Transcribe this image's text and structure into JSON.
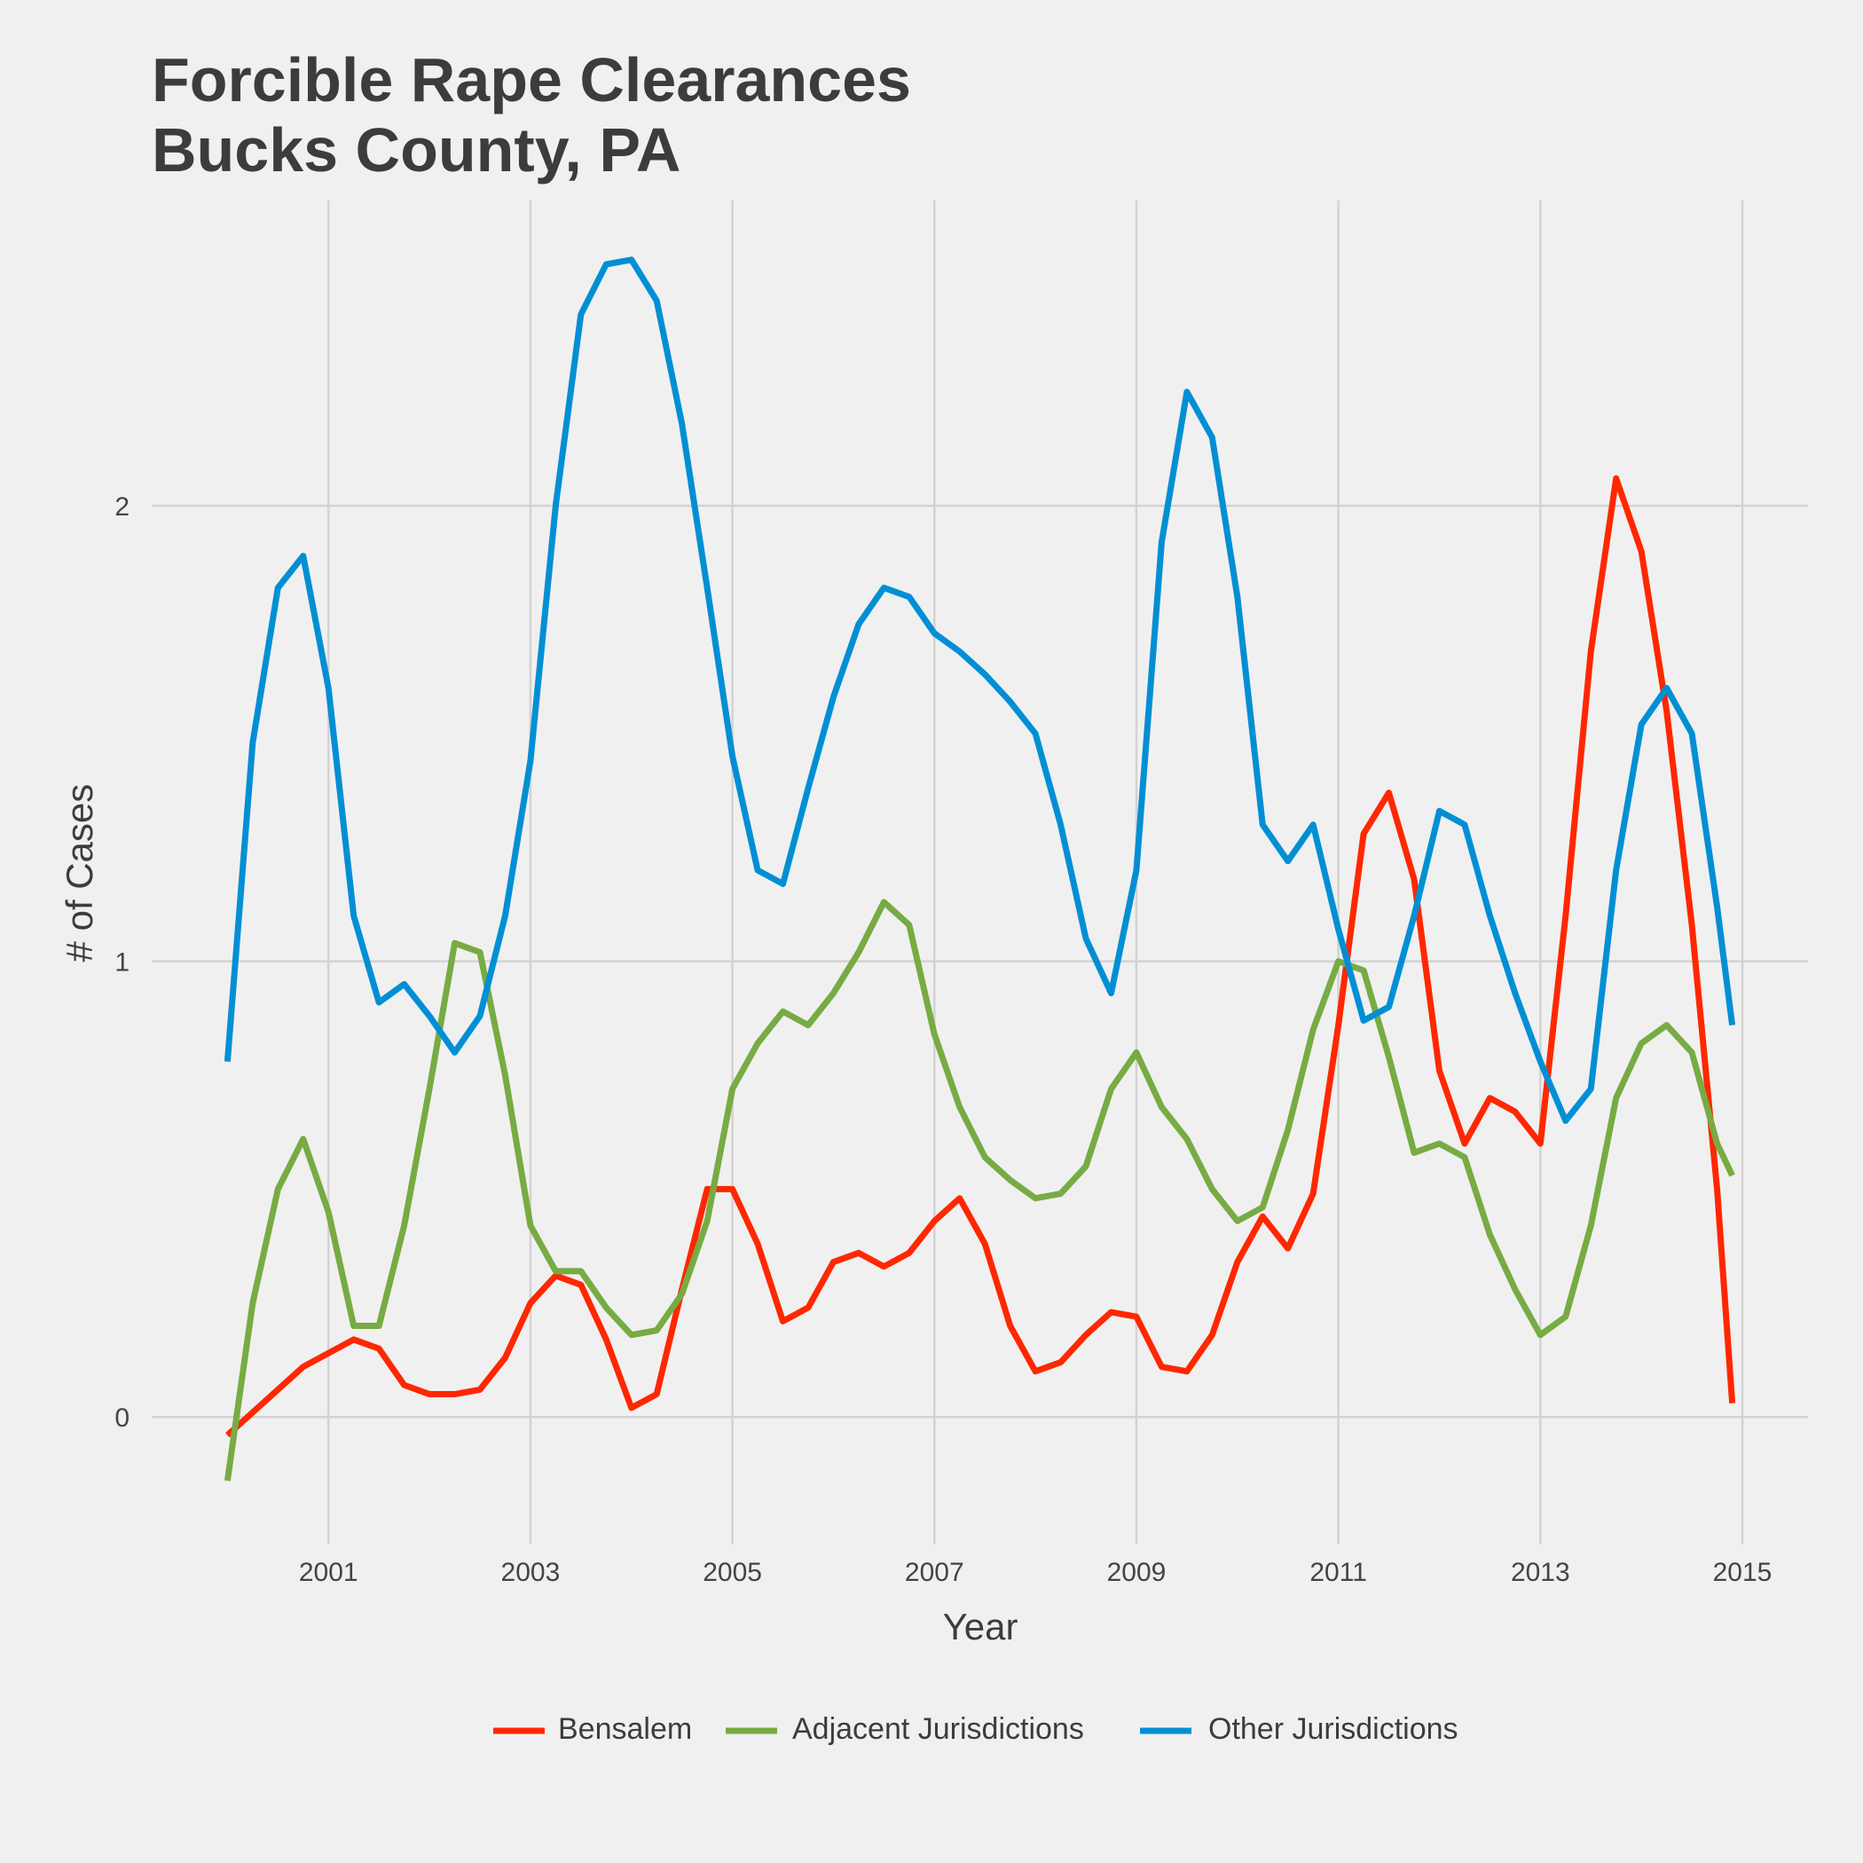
{
  "chart_data": {
    "type": "line",
    "title": [
      "Forcible Rape Clearances",
      "Bucks County, PA"
    ],
    "x_label": "Year",
    "y_label": "# of Cases",
    "x": [
      2000,
      2000.25,
      2000.5,
      2000.75,
      2001,
      2001.25,
      2001.5,
      2001.75,
      2002,
      2002.25,
      2002.5,
      2002.75,
      2003,
      2003.25,
      2003.5,
      2003.75,
      2004,
      2004.25,
      2004.5,
      2004.75,
      2005,
      2005.25,
      2005.5,
      2005.75,
      2006,
      2006.25,
      2006.5,
      2006.75,
      2007,
      2007.25,
      2007.5,
      2007.75,
      2008,
      2008.25,
      2008.5,
      2008.75,
      2009,
      2009.25,
      2009.5,
      2009.75,
      2010,
      2010.25,
      2010.5,
      2010.75,
      2011,
      2011.25,
      2011.5,
      2011.75,
      2012,
      2012.25,
      2012.5,
      2012.75,
      2013,
      2013.25,
      2013.5,
      2013.75,
      2014,
      2014.25,
      2014.5,
      2014.75,
      2014.9
    ],
    "series": [
      {
        "name": "Bensalem",
        "color": "#ff2700",
        "values": [
          -0.04,
          0.01,
          0.06,
          0.11,
          0.14,
          0.17,
          0.15,
          0.07,
          0.05,
          0.05,
          0.06,
          0.13,
          0.25,
          0.31,
          0.29,
          0.17,
          0.02,
          0.05,
          0.28,
          0.5,
          0.5,
          0.38,
          0.21,
          0.24,
          0.34,
          0.36,
          0.33,
          0.36,
          0.43,
          0.48,
          0.38,
          0.2,
          0.1,
          0.12,
          0.18,
          0.23,
          0.22,
          0.11,
          0.1,
          0.18,
          0.34,
          0.44,
          0.37,
          0.49,
          0.86,
          1.28,
          1.37,
          1.18,
          0.76,
          0.6,
          0.7,
          0.67,
          0.6,
          1.1,
          1.68,
          2.06,
          1.9,
          1.55,
          1.08,
          0.5,
          0.03
        ]
      },
      {
        "name": "Adjacent Jurisdictions",
        "color": "#77ab43",
        "values": [
          -0.14,
          0.25,
          0.5,
          0.61,
          0.45,
          0.2,
          0.2,
          0.42,
          0.72,
          1.04,
          1.02,
          0.75,
          0.42,
          0.32,
          0.32,
          0.24,
          0.18,
          0.19,
          0.27,
          0.43,
          0.72,
          0.82,
          0.89,
          0.86,
          0.93,
          1.02,
          1.13,
          1.08,
          0.84,
          0.68,
          0.57,
          0.52,
          0.48,
          0.49,
          0.55,
          0.72,
          0.8,
          0.68,
          0.61,
          0.5,
          0.43,
          0.46,
          0.63,
          0.85,
          1.0,
          0.98,
          0.79,
          0.58,
          0.6,
          0.57,
          0.4,
          0.28,
          0.18,
          0.22,
          0.42,
          0.7,
          0.82,
          0.86,
          0.8,
          0.6,
          0.53
        ]
      },
      {
        "name": "Other Jurisdictions",
        "color": "#008fd5",
        "values": [
          0.78,
          1.48,
          1.82,
          1.89,
          1.6,
          1.1,
          0.91,
          0.95,
          0.88,
          0.8,
          0.88,
          1.1,
          1.44,
          2.0,
          2.42,
          2.53,
          2.54,
          2.45,
          2.18,
          1.82,
          1.45,
          1.2,
          1.17,
          1.38,
          1.58,
          1.74,
          1.82,
          1.8,
          1.72,
          1.68,
          1.63,
          1.57,
          1.5,
          1.3,
          1.05,
          0.93,
          1.2,
          1.92,
          2.25,
          2.15,
          1.8,
          1.3,
          1.22,
          1.3,
          1.07,
          0.87,
          0.9,
          1.1,
          1.33,
          1.3,
          1.1,
          0.93,
          0.78,
          0.65,
          0.72,
          1.2,
          1.52,
          1.6,
          1.5,
          1.12,
          0.86
        ]
      }
    ],
    "xlim": [
      1999.25,
      2015.65
    ],
    "xticks": [
      2001,
      2003,
      2005,
      2007,
      2009,
      2011,
      2013,
      2015
    ],
    "ylim": [
      -0.28,
      2.67
    ],
    "yticks": [
      0,
      1,
      2
    ],
    "grid": true,
    "legend": "bottom"
  }
}
